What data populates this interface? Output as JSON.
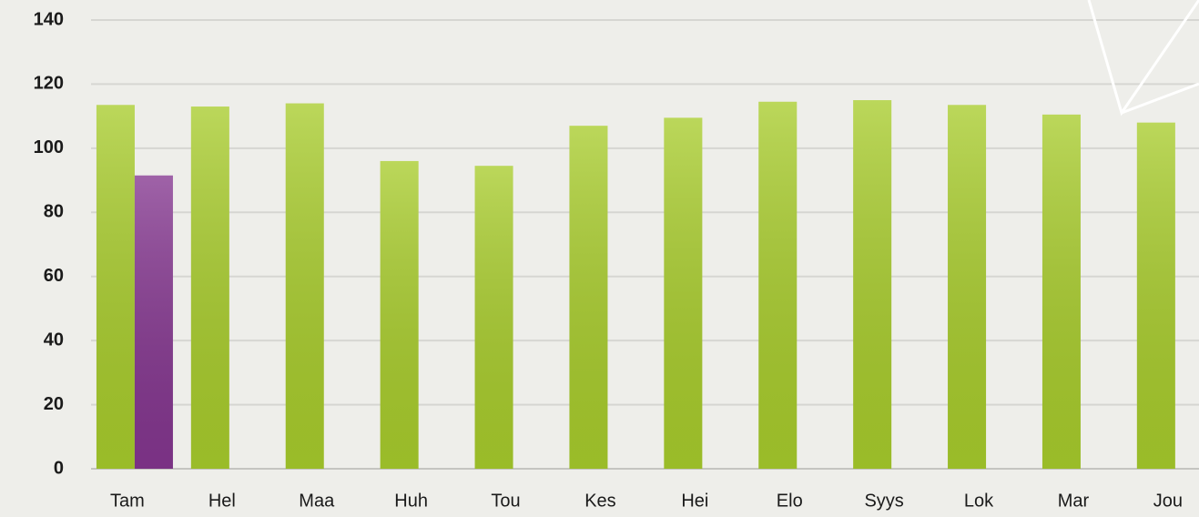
{
  "chart_data": {
    "type": "bar",
    "categories": [
      "Tam",
      "Hel",
      "Maa",
      "Huh",
      "Tou",
      "Kes",
      "Hei",
      "Elo",
      "Syys",
      "Lok",
      "Mar",
      "Jou"
    ],
    "series": [
      {
        "color": "#a8cc2c",
        "values": [
          113.5,
          113,
          114,
          96,
          94.5,
          107,
          109.5,
          114.5,
          115,
          113.5,
          110.5,
          108
        ]
      },
      {
        "color": "#84368f",
        "values": [
          91.5,
          null,
          null,
          null,
          null,
          null,
          null,
          null,
          null,
          null,
          null,
          null
        ]
      }
    ],
    "ylim": [
      0,
      140
    ],
    "yticks": [
      0,
      20,
      40,
      60,
      80,
      100,
      120,
      140
    ],
    "grid": true
  }
}
